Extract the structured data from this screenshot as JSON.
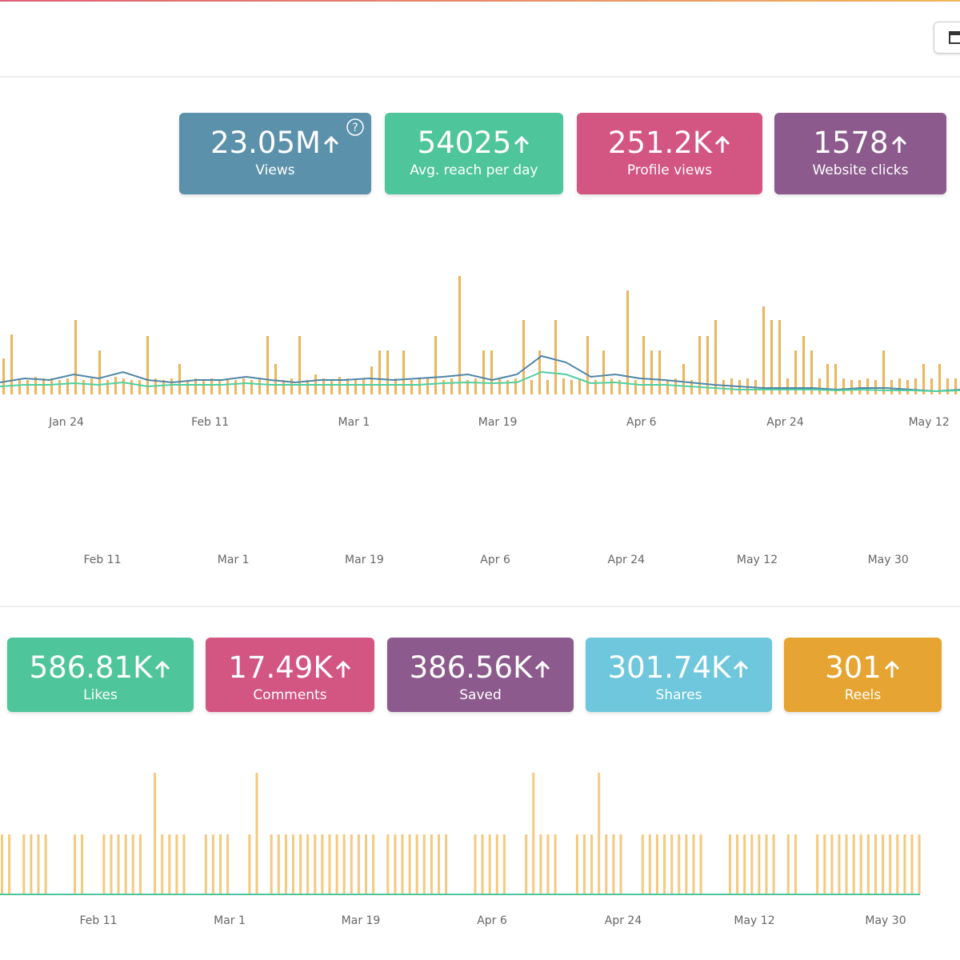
{
  "kpi_row_1": [
    {
      "value": "23.05M",
      "label": "Views"
    },
    {
      "value": "54025",
      "label": "Avg. reach per day"
    },
    {
      "value": "251.2K",
      "label": "Profile views"
    },
    {
      "value": "1578",
      "label": "Website clicks"
    }
  ],
  "kpi_row_2": [
    {
      "value": "586.81K",
      "label": "Likes"
    },
    {
      "value": "17.49K",
      "label": "Comments"
    },
    {
      "value": "386.56K",
      "label": "Saved"
    },
    {
      "value": "301.74K",
      "label": "Shares"
    },
    {
      "value": "301",
      "label": "Reels"
    }
  ],
  "chart_data": [
    {
      "type": "bar-line",
      "x_tick_labels": [
        "Jan 24",
        "Feb 11",
        "Mar 1",
        "Mar 19",
        "Apr 6",
        "Apr 24",
        "May 12"
      ],
      "bars": {
        "color": "#f0b55a",
        "values": [
          45,
          75,
          20,
          18,
          22,
          20,
          20,
          18,
          20,
          93,
          18,
          20,
          55,
          18,
          22,
          20,
          18,
          18,
          73,
          20,
          18,
          20,
          38,
          18,
          20,
          18,
          20,
          18,
          20,
          18,
          20,
          18,
          20,
          73,
          38,
          18,
          20,
          73,
          18,
          25,
          20,
          18,
          22,
          20,
          18,
          20,
          35,
          55,
          55,
          20,
          55,
          18,
          20,
          20,
          73,
          18,
          20,
          148,
          18,
          20,
          55,
          55,
          20,
          18,
          20,
          93,
          18,
          55,
          18,
          93,
          20,
          18,
          20,
          73,
          18,
          55,
          20,
          18,
          130,
          18,
          73,
          55,
          55,
          18,
          20,
          38,
          18,
          73,
          73,
          93,
          18,
          20,
          18,
          20,
          18,
          110,
          93,
          93,
          20,
          55,
          73,
          55,
          20,
          38,
          38,
          20,
          18,
          18,
          20,
          18,
          55,
          18,
          20,
          18,
          20,
          38,
          20,
          38,
          20,
          20
        ]
      },
      "series": [
        {
          "color": "#4e86a8",
          "values": [
            15,
            20,
            18,
            25,
            20,
            28,
            18,
            15,
            18,
            18,
            22,
            18,
            15,
            18,
            18,
            20,
            18,
            20,
            22,
            25,
            18,
            25,
            48,
            40,
            22,
            25,
            20,
            18,
            15,
            12,
            10,
            8,
            8,
            8,
            6,
            8,
            8,
            6,
            4,
            6
          ]
        },
        {
          "color": "#4fd0a0",
          "values": [
            10,
            12,
            12,
            14,
            12,
            15,
            10,
            12,
            12,
            12,
            14,
            12,
            12,
            12,
            12,
            12,
            12,
            12,
            14,
            15,
            14,
            15,
            28,
            25,
            14,
            15,
            12,
            12,
            10,
            8,
            6,
            6,
            6,
            6,
            5,
            6,
            5,
            5,
            4,
            5
          ]
        }
      ]
    },
    {
      "type": "empty",
      "x_tick_labels": [
        "Feb 11",
        "Mar 1",
        "Mar 19",
        "Apr 6",
        "Apr 24",
        "May 12",
        "May 30"
      ]
    },
    {
      "type": "bar",
      "x_tick_labels": [
        "Feb 11",
        "Mar 1",
        "Mar 19",
        "Apr 6",
        "Apr 24",
        "May 12",
        "May 30"
      ],
      "bars": {
        "color": "#f5c97e",
        "values": [
          75,
          75,
          null,
          75,
          75,
          75,
          75,
          null,
          null,
          null,
          75,
          75,
          null,
          null,
          75,
          75,
          75,
          75,
          75,
          75,
          null,
          152,
          75,
          75,
          75,
          75,
          null,
          null,
          75,
          75,
          75,
          75,
          null,
          null,
          75,
          152,
          null,
          75,
          75,
          75,
          75,
          75,
          75,
          75,
          75,
          75,
          75,
          75,
          75,
          75,
          75,
          75,
          null,
          75,
          75,
          75,
          75,
          75,
          75,
          75,
          75,
          75,
          null,
          null,
          null,
          75,
          75,
          75,
          75,
          75,
          null,
          null,
          75,
          152,
          75,
          75,
          75,
          null,
          null,
          75,
          75,
          75,
          152,
          75,
          75,
          75,
          null,
          null,
          75,
          75,
          75,
          75,
          75,
          75,
          75,
          75,
          75,
          null,
          null,
          null,
          75,
          75,
          75,
          75,
          75,
          75,
          75,
          null,
          75,
          75,
          null,
          null,
          75,
          75,
          75,
          75,
          75,
          75,
          75,
          75,
          75,
          75,
          75,
          75,
          75,
          75,
          75
        ]
      }
    }
  ]
}
